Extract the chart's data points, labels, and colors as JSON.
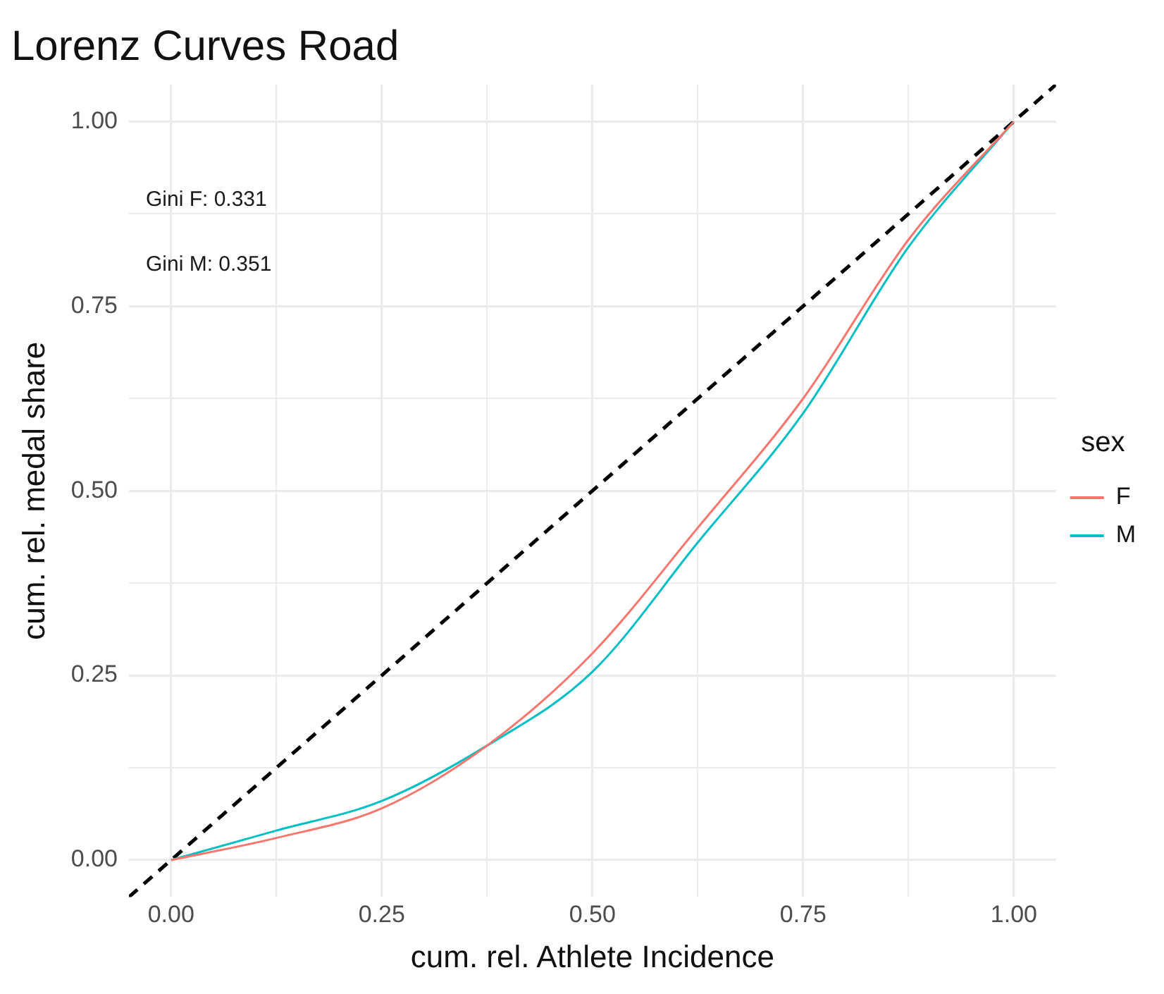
{
  "chart_data": {
    "type": "line",
    "title": "Lorenz Curves Road",
    "xlabel": "cum. rel. Athlete Incidence",
    "ylabel": "cum. rel. medal share",
    "legend_title": "sex",
    "x": [
      0,
      0.125,
      0.25,
      0.375,
      0.5,
      0.625,
      0.75,
      0.875,
      1
    ],
    "series": [
      {
        "name": "F",
        "color": "#f8766d",
        "values": [
          0,
          0.03,
          0.07,
          0.155,
          0.28,
          0.45,
          0.625,
          0.84,
          1
        ]
      },
      {
        "name": "M",
        "color": "#00bfc4",
        "values": [
          0,
          0.04,
          0.08,
          0.155,
          0.255,
          0.43,
          0.605,
          0.83,
          1
        ]
      },
      {
        "color": "#000000",
        "line_style": "dashed",
        "x": [
          -0.05,
          1.05
        ],
        "values": [
          -0.05,
          1.05
        ]
      }
    ],
    "annotations": [
      "Gini F: 0.331",
      "Gini M: 0.351"
    ],
    "xlim": [
      -0.05,
      1.05
    ],
    "ylim": [
      -0.05,
      1.05
    ],
    "xticks": [
      {
        "value": 0,
        "label": "0.00"
      },
      {
        "value": 0.125,
        "label": null
      },
      {
        "value": 0.25,
        "label": "0.25"
      },
      {
        "value": 0.375,
        "label": null
      },
      {
        "value": 0.5,
        "label": "0.50"
      },
      {
        "value": 0.625,
        "label": null
      },
      {
        "value": 0.75,
        "label": "0.75"
      },
      {
        "value": 0.875,
        "label": null
      },
      {
        "value": 1,
        "label": "1.00"
      }
    ],
    "yticks": [
      {
        "value": 0,
        "label": "0.00"
      },
      {
        "value": 0.125,
        "label": null
      },
      {
        "value": 0.25,
        "label": "0.25"
      },
      {
        "value": 0.375,
        "label": null
      },
      {
        "value": 0.5,
        "label": "0.50"
      },
      {
        "value": 0.625,
        "label": null
      },
      {
        "value": 0.75,
        "label": "0.75"
      },
      {
        "value": 0.875,
        "label": null
      },
      {
        "value": 1,
        "label": "1.00"
      }
    ],
    "grid": true,
    "legend": "right",
    "marker": "none",
    "line_style": "solid"
  }
}
